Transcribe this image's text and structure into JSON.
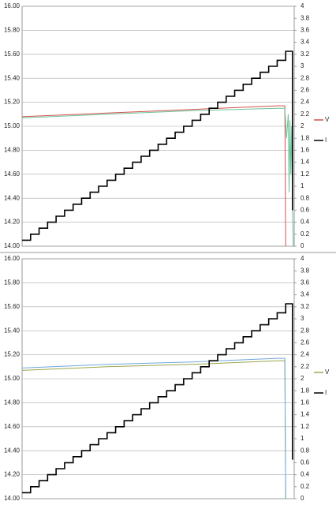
{
  "chart_data": [
    {
      "type": "line",
      "legend": "right",
      "grid": true,
      "xlim": [
        0,
        32
      ],
      "ylim": [
        14,
        16
      ],
      "yticks": [
        {
          "value": 14,
          "label": "14.00"
        },
        {
          "value": 14.2,
          "label": "14.20"
        },
        {
          "value": 14.4,
          "label": "14.40"
        },
        {
          "value": 14.6,
          "label": "14.60"
        },
        {
          "value": 14.8,
          "label": "14.80"
        },
        {
          "value": 15,
          "label": "15.00"
        },
        {
          "value": 15.2,
          "label": "15.20"
        },
        {
          "value": 15.4,
          "label": "15.40"
        },
        {
          "value": 15.6,
          "label": "15.60"
        },
        {
          "value": 15.8,
          "label": "15.80"
        },
        {
          "value": 16,
          "label": "16.00"
        }
      ],
      "y2lim": [
        0,
        4
      ],
      "y2ticks": [
        0,
        0.2,
        0.4,
        0.6,
        0.8,
        1,
        1.2,
        1.4,
        1.6,
        1.8,
        2,
        2.2,
        2.4,
        2.6,
        2.8,
        3,
        3.2,
        3.4,
        3.6,
        3.8,
        4
      ],
      "series": [
        {
          "name": "V",
          "color": "#d0504a",
          "x": [
            0,
            10,
            20,
            30,
            30.9,
            31.0
          ],
          "values": [
            15.08,
            15.11,
            15.14,
            15.17,
            15.17,
            14.0
          ]
        },
        {
          "color": "#6cc39a",
          "x": [
            0,
            10,
            20,
            30,
            30.9,
            31.1,
            31.3,
            31.4,
            31.5,
            31.6,
            31.7,
            31.8,
            31.9
          ],
          "values": [
            15.07,
            15.1,
            15.13,
            15.15,
            15.15,
            14.9,
            15.1,
            14.45,
            15.05,
            14.6,
            15.0,
            14.3,
            14.0
          ]
        },
        {
          "name": "I",
          "color": "#000000",
          "axis": "y2",
          "step": true,
          "x": [
            0,
            1,
            2,
            3,
            4,
            5,
            6,
            7,
            8,
            9,
            10,
            11,
            12,
            13,
            14,
            15,
            16,
            17,
            18,
            19,
            20,
            21,
            22,
            23,
            24,
            25,
            26,
            27,
            28,
            29,
            30,
            31,
            31.8
          ],
          "values": [
            0.1,
            0.2,
            0.3,
            0.4,
            0.5,
            0.6,
            0.7,
            0.8,
            0.9,
            1.0,
            1.1,
            1.2,
            1.3,
            1.4,
            1.5,
            1.6,
            1.7,
            1.8,
            1.9,
            2.0,
            2.1,
            2.2,
            2.3,
            2.4,
            2.5,
            2.6,
            2.7,
            2.8,
            2.9,
            3.0,
            3.1,
            3.25,
            0.6
          ]
        }
      ]
    },
    {
      "type": "line",
      "legend": "right",
      "grid": true,
      "xlim": [
        0,
        32
      ],
      "ylim": [
        14,
        16
      ],
      "yticks": [
        {
          "value": 14,
          "label": "14.00"
        },
        {
          "value": 14.2,
          "label": "14.20"
        },
        {
          "value": 14.4,
          "label": "14.40"
        },
        {
          "value": 14.6,
          "label": "14.60"
        },
        {
          "value": 14.8,
          "label": "14.80"
        },
        {
          "value": 15,
          "label": "15.00"
        },
        {
          "value": 15.2,
          "label": "15.20"
        },
        {
          "value": 15.4,
          "label": "15.40"
        },
        {
          "value": 15.6,
          "label": "15.60"
        },
        {
          "value": 15.8,
          "label": "15.80"
        },
        {
          "value": 16,
          "label": "16.00"
        }
      ],
      "y2lim": [
        0,
        4
      ],
      "y2ticks": [
        0,
        0.2,
        0.4,
        0.6,
        0.8,
        1,
        1.2,
        1.4,
        1.6,
        1.8,
        2,
        2.2,
        2.4,
        2.6,
        2.8,
        3,
        3.2,
        3.4,
        3.6,
        3.8,
        4
      ],
      "series": [
        {
          "name": "V",
          "color": "#9aa64a",
          "x": [
            0,
            10,
            20,
            30,
            30.9,
            31.0
          ],
          "values": [
            15.07,
            15.1,
            15.12,
            15.15,
            15.15,
            14.0
          ]
        },
        {
          "color": "#6fa8dc",
          "x": [
            0,
            10,
            20,
            30,
            30.9,
            31.0
          ],
          "values": [
            15.09,
            15.12,
            15.14,
            15.17,
            15.17,
            14.0
          ]
        },
        {
          "name": "I",
          "color": "#000000",
          "axis": "y2",
          "step": true,
          "x": [
            0,
            1,
            2,
            3,
            4,
            5,
            6,
            7,
            8,
            9,
            10,
            11,
            12,
            13,
            14,
            15,
            16,
            17,
            18,
            19,
            20,
            21,
            22,
            23,
            24,
            25,
            26,
            27,
            28,
            29,
            30,
            31,
            31.8
          ],
          "values": [
            0.1,
            0.2,
            0.3,
            0.4,
            0.5,
            0.6,
            0.7,
            0.8,
            0.9,
            1.0,
            1.1,
            1.2,
            1.3,
            1.4,
            1.5,
            1.6,
            1.7,
            1.8,
            1.9,
            2.0,
            2.1,
            2.2,
            2.3,
            2.4,
            2.5,
            2.6,
            2.7,
            2.8,
            2.9,
            3.0,
            3.1,
            3.25,
            0.65
          ]
        }
      ]
    }
  ]
}
